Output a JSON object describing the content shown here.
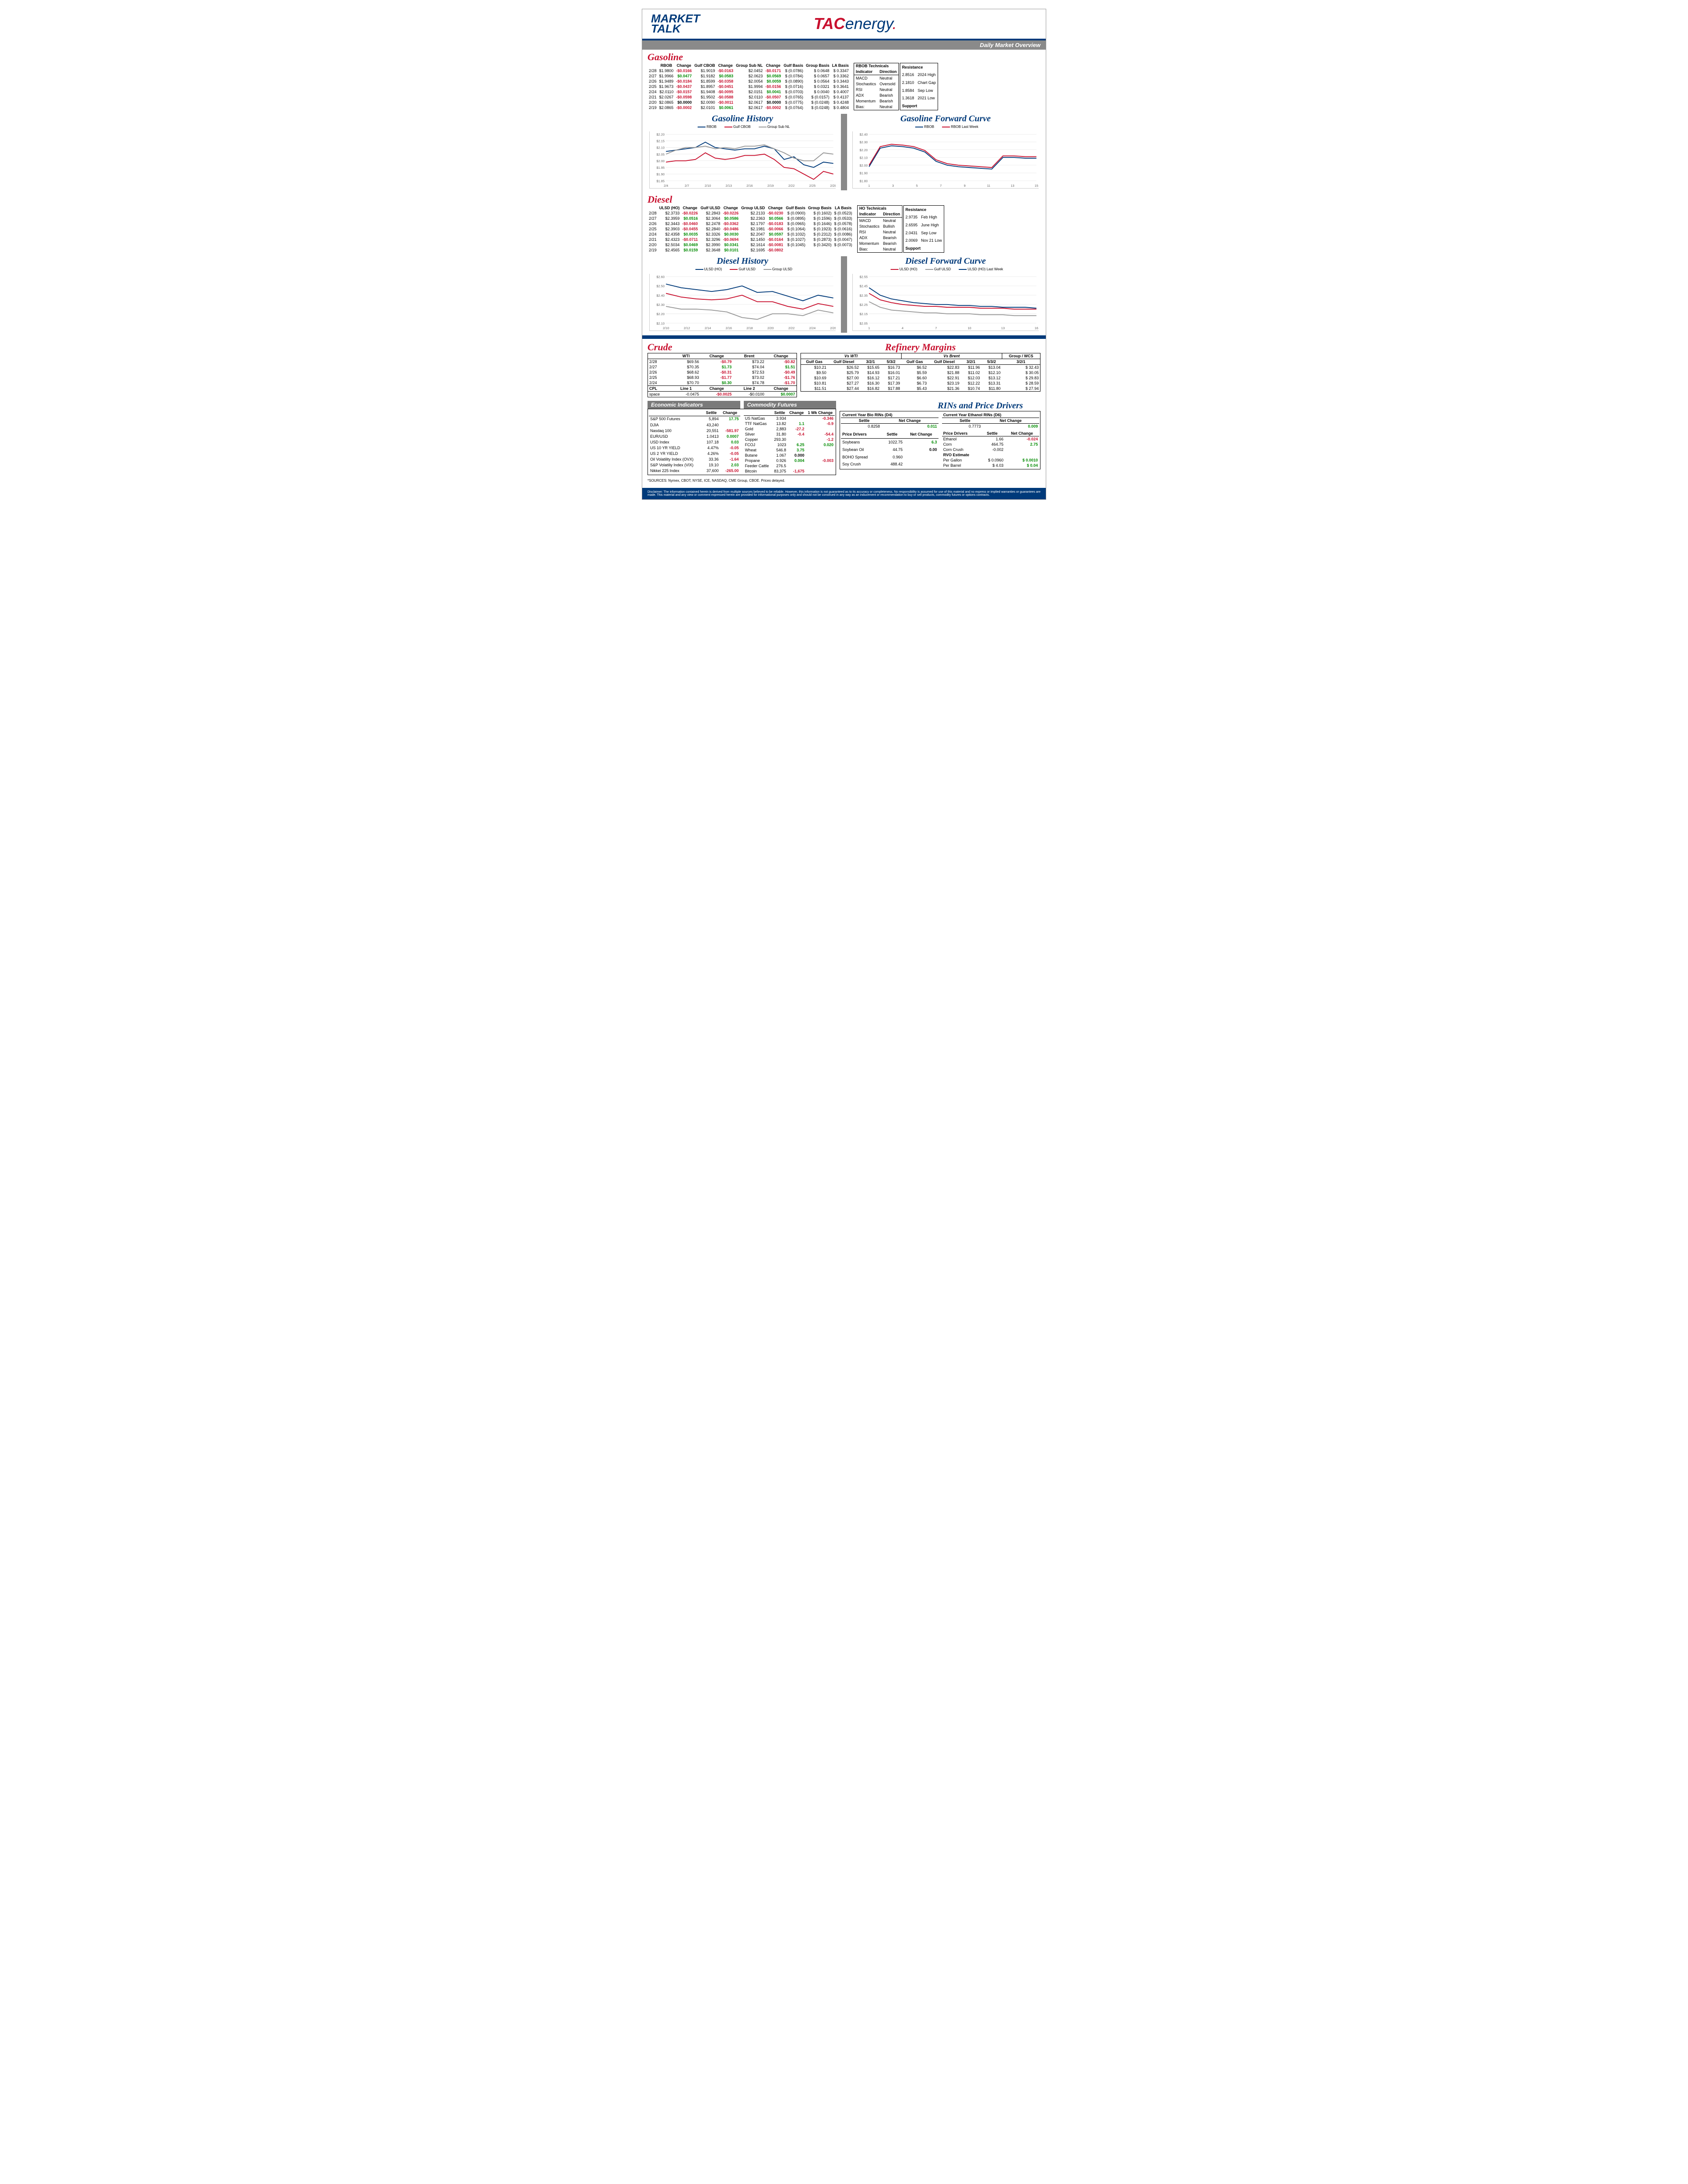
{
  "header": {
    "brand1_line1": "MARKET",
    "brand1_line2": "TALK",
    "brand2_red": "TAC",
    "brand2_blue": "energy",
    "daily_label": "Daily Market Overview"
  },
  "gasoline": {
    "title": "Gasoline",
    "cols": [
      "",
      "RBOB",
      "Change",
      "Gulf CBOB",
      "Change",
      "Group Sub NL",
      "Change",
      "Gulf Basis",
      "Group Basis",
      "LA Basis"
    ],
    "rows": [
      [
        "2/28",
        "$1.9800",
        "-$0.0166",
        "$1.9019",
        "-$0.0163",
        "$2.0452",
        "-$0.0171",
        "$ (0.0786)",
        "$    0.0648",
        "$  0.3347"
      ],
      [
        "2/27",
        "$1.9966",
        "$0.0477",
        "$1.9182",
        "$0.0583",
        "$2.0623",
        "$0.0569",
        "$ (0.0784)",
        "$    0.0657",
        "$  0.3362"
      ],
      [
        "2/26",
        "$1.9489",
        "-$0.0184",
        "$1.8599",
        "-$0.0358",
        "$2.0054",
        "$0.0059",
        "$ (0.0890)",
        "$    0.0564",
        "$  0.3443"
      ],
      [
        "2/25",
        "$1.9673",
        "-$0.0437",
        "$1.8957",
        "-$0.0451",
        "$1.9994",
        "-$0.0156",
        "$ (0.0716)",
        "$    0.0321",
        "$  0.3641"
      ],
      [
        "2/24",
        "$2.0110",
        "-$0.0157",
        "$1.9408",
        "-$0.0095",
        "$2.0151",
        "$0.0041",
        "$ (0.0703)",
        "$    0.0040",
        "$  0.4007"
      ],
      [
        "2/21",
        "$2.0267",
        "-$0.0598",
        "$1.9502",
        "-$0.0588",
        "$2.0110",
        "-$0.0507",
        "$ (0.0765)",
        "$ (0.0157)",
        "$  0.4137"
      ],
      [
        "2/20",
        "$2.0865",
        "$0.0000",
        "$2.0090",
        "-$0.0011",
        "$2.0617",
        "$0.0000",
        "$ (0.0775)",
        "$ (0.0248)",
        "$  0.4248"
      ],
      [
        "2/19",
        "$2.0865",
        "-$0.0002",
        "$2.0101",
        "$0.0061",
        "$2.0617",
        "-$0.0002",
        "$ (0.0764)",
        "$ (0.0248)",
        "$  0.4804"
      ]
    ],
    "tech_title": "RBOB Technicals",
    "tech": [
      [
        "Indicator",
        "Direction"
      ],
      [
        "MACD",
        "Neutral"
      ],
      [
        "Stochastics",
        "Oversold"
      ],
      [
        "RSI",
        "Neutral"
      ],
      [
        "ADX",
        "Bearish"
      ],
      [
        "Momentum",
        "Bearish"
      ],
      [
        "Bias:",
        "Neutral"
      ]
    ],
    "res_title": "Resistance",
    "res": [
      [
        "2.8516",
        "2024 High"
      ],
      [
        "2.1810",
        "Chart Gap"
      ],
      [
        "1.8584",
        "Sep Low"
      ],
      [
        "1.3618",
        "2021 Low"
      ]
    ],
    "sup_title": "Support"
  },
  "gas_history": {
    "title": "Gasoline History",
    "legend": [
      {
        "label": "RBOB",
        "color": "#003a7a"
      },
      {
        "label": "Gulf CBOB",
        "color": "#c8102e"
      },
      {
        "label": "Group Sub NL",
        "color": "#999"
      }
    ],
    "ylabels": [
      "$2.20",
      "$2.15",
      "$2.10",
      "$2.05",
      "$2.00",
      "$1.95",
      "$1.90",
      "$1.85"
    ],
    "xlabels": [
      "2/4",
      "2/7",
      "2/10",
      "2/13",
      "2/16",
      "2/19",
      "2/22",
      "2/25",
      "2/28"
    ],
    "series": {
      "rbob": [
        2.07,
        2.08,
        2.09,
        2.1,
        2.14,
        2.1,
        2.09,
        2.08,
        2.09,
        2.09,
        2.11,
        2.09,
        2.01,
        2.03,
        1.97,
        1.95,
        1.99,
        1.98
      ],
      "gulf": [
        1.99,
        2.0,
        2.0,
        2.01,
        2.06,
        2.02,
        2.01,
        2.02,
        2.04,
        2.04,
        2.05,
        2.01,
        1.95,
        1.94,
        1.9,
        1.86,
        1.92,
        1.9
      ],
      "group": [
        2.05,
        2.08,
        2.1,
        2.1,
        2.11,
        2.09,
        2.1,
        2.09,
        2.11,
        2.11,
        2.12,
        2.09,
        2.06,
        2.02,
        2.0,
        2.0,
        2.06,
        2.05
      ]
    },
    "ylim": [
      1.85,
      2.2
    ]
  },
  "gas_forward": {
    "title": "Gasoline Forward Curve",
    "legend": [
      {
        "label": "RBOB",
        "color": "#003a7a"
      },
      {
        "label": "RBOB Last Week",
        "color": "#c8102e"
      }
    ],
    "ylabels": [
      "$2.40",
      "$2.30",
      "$2.20",
      "$2.10",
      "$2.00",
      "$1.90",
      "$1.80"
    ],
    "xlabels": [
      "1",
      "3",
      "5",
      "7",
      "9",
      "11",
      "13",
      "15"
    ],
    "series": {
      "rbob": [
        1.98,
        2.22,
        2.25,
        2.24,
        2.22,
        2.17,
        2.05,
        2.0,
        1.98,
        1.97,
        1.96,
        1.95,
        2.1,
        2.1,
        2.09,
        2.09
      ],
      "last": [
        2.0,
        2.24,
        2.27,
        2.26,
        2.24,
        2.19,
        2.07,
        2.02,
        2.0,
        1.99,
        1.98,
        1.97,
        2.12,
        2.12,
        2.11,
        2.11
      ]
    },
    "ylim": [
      1.8,
      2.4
    ]
  },
  "diesel": {
    "title": "Diesel",
    "cols": [
      "",
      "ULSD (HO)",
      "Change",
      "Gulf ULSD",
      "Change",
      "Group ULSD",
      "Change",
      "Gulf Basis",
      "Group Basis",
      "LA Basis"
    ],
    "rows": [
      [
        "2/28",
        "$2.3733",
        "-$0.0226",
        "$2.2843",
        "-$0.0226",
        "$2.2133",
        "-$0.0230",
        "$ (0.0900)",
        "$ (0.1602)",
        "$ (0.0523)"
      ],
      [
        "2/27",
        "$2.3959",
        "$0.0516",
        "$2.3064",
        "$0.0586",
        "$2.2363",
        "$0.0566",
        "$ (0.0895)",
        "$ (0.1596)",
        "$ (0.0533)"
      ],
      [
        "2/26",
        "$2.3443",
        "-$0.0460",
        "$2.2478",
        "-$0.0362",
        "$2.1797",
        "-$0.0183",
        "$ (0.0965)",
        "$ (0.1646)",
        "$ (0.0578)"
      ],
      [
        "2/25",
        "$2.3903",
        "-$0.0455",
        "$2.2840",
        "-$0.0486",
        "$2.1981",
        "-$0.0066",
        "$ (0.1064)",
        "$ (0.1923)",
        "$ (0.0616)"
      ],
      [
        "2/24",
        "$2.4358",
        "$0.0035",
        "$2.3326",
        "$0.0030",
        "$2.2047",
        "$0.0597",
        "$ (0.1032)",
        "$ (0.2312)",
        "$ (0.0086)"
      ],
      [
        "2/21",
        "$2.4323",
        "-$0.0711",
        "$2.3296",
        "-$0.0694",
        "$2.1450",
        "-$0.0164",
        "$ (0.1027)",
        "$ (0.2873)",
        "$ (0.0047)"
      ],
      [
        "2/20",
        "$2.5034",
        "$0.0469",
        "$2.3990",
        "$0.0341",
        "$2.1614",
        "-$0.0081",
        "$ (0.1045)",
        "$ (0.3420)",
        "$ (0.0073)"
      ],
      [
        "2/19",
        "$2.4565",
        "$0.0159",
        "$2.3648",
        "$0.0101",
        "$2.1695",
        "-$0.0802",
        "",
        "",
        ""
      ]
    ],
    "tech_title": "HO Technicals",
    "tech": [
      [
        "Indicator",
        "Direction"
      ],
      [
        "MACD",
        "Neutral"
      ],
      [
        "Stochastics",
        "Bullish"
      ],
      [
        "RSI",
        "Neutral"
      ],
      [
        "ADX",
        "Bearish"
      ],
      [
        "Momentum",
        "Bearish"
      ],
      [
        "Bias:",
        "Neutral"
      ]
    ],
    "res_title": "Resistance",
    "res": [
      [
        "2.9735",
        "Feb High"
      ],
      [
        "2.6595",
        "June High"
      ],
      [
        "2.0431",
        "Sep Low"
      ],
      [
        "2.0069",
        "Nov 21 Low"
      ]
    ],
    "sup_title": "Support"
  },
  "diesel_history": {
    "title": "Diesel History",
    "legend": [
      {
        "label": "ULSD (HO)",
        "color": "#003a7a"
      },
      {
        "label": "Gulf ULSD",
        "color": "#c8102e"
      },
      {
        "label": "Group ULSD",
        "color": "#999"
      }
    ],
    "ylabels": [
      "$2.60",
      "$2.50",
      "$2.40",
      "$2.30",
      "$2.20",
      "$2.10"
    ],
    "xlabels": [
      "2/10",
      "2/12",
      "2/14",
      "2/16",
      "2/18",
      "2/20",
      "2/22",
      "2/24",
      "2/26"
    ],
    "series": {
      "ulsd": [
        2.52,
        2.48,
        2.46,
        2.44,
        2.46,
        2.5,
        2.43,
        2.44,
        2.39,
        2.34,
        2.4,
        2.37
      ],
      "gulf": [
        2.42,
        2.38,
        2.36,
        2.35,
        2.36,
        2.4,
        2.33,
        2.33,
        2.28,
        2.25,
        2.31,
        2.28
      ],
      "group": [
        2.28,
        2.25,
        2.25,
        2.24,
        2.22,
        2.16,
        2.14,
        2.2,
        2.2,
        2.18,
        2.24,
        2.21
      ]
    },
    "ylim": [
      2.1,
      2.6
    ]
  },
  "diesel_forward": {
    "title": "Diesel Forward Curve",
    "legend": [
      {
        "label": "ULSD (HO)",
        "color": "#c8102e"
      },
      {
        "label": "Gulf ULSD",
        "color": "#999"
      },
      {
        "label": "ULSD (HO) Last Week",
        "color": "#003a7a"
      }
    ],
    "ylabels": [
      "$2.55",
      "$2.45",
      "$2.35",
      "$2.25",
      "$2.15",
      "$2.05"
    ],
    "xlabels": [
      "1",
      "4",
      "7",
      "10",
      "13",
      "16"
    ],
    "series": {
      "ulsd": [
        2.37,
        2.3,
        2.27,
        2.25,
        2.24,
        2.23,
        2.23,
        2.22,
        2.22,
        2.22,
        2.21,
        2.21,
        2.21,
        2.2,
        2.2,
        2.2
      ],
      "gulf": [
        2.28,
        2.22,
        2.19,
        2.18,
        2.17,
        2.16,
        2.16,
        2.15,
        2.15,
        2.15,
        2.14,
        2.14,
        2.14,
        2.13,
        2.13,
        2.13
      ],
      "last": [
        2.43,
        2.35,
        2.31,
        2.29,
        2.27,
        2.26,
        2.25,
        2.25,
        2.24,
        2.24,
        2.23,
        2.23,
        2.22,
        2.22,
        2.22,
        2.21
      ]
    },
    "ylim": [
      2.05,
      2.55
    ]
  },
  "crude": {
    "title": "Crude",
    "cols": [
      "",
      "WTI",
      "Change",
      "Brent",
      "Change"
    ],
    "rows": [
      [
        "2/28",
        "$69.56",
        "-$0.79",
        "$73.22",
        "-$0.82"
      ],
      [
        "2/27",
        "$70.35",
        "$1.73",
        "$74.04",
        "$1.51"
      ],
      [
        "2/26",
        "$68.62",
        "-$0.31",
        "$72.53",
        "-$0.49"
      ],
      [
        "2/25",
        "$68.93",
        "-$1.77",
        "$73.02",
        "-$1.76"
      ],
      [
        "2/24",
        "$70.70",
        "$0.30",
        "$74.78",
        "-$1.70"
      ]
    ],
    "cpl": [
      "CPL",
      "Line 1",
      "Change",
      "Line 2",
      "Change"
    ],
    "cpl_row": [
      "space",
      "-0.0475",
      "-$0.0025",
      "-$0.0100",
      "$0.0007"
    ]
  },
  "refinery": {
    "title": "Refinery Margins",
    "wti_head": "Vs WTI",
    "brent_head": "Vs Brent",
    "group_head": "Group / WCS",
    "cols": [
      "Gulf Gas",
      "Gulf Diesel",
      "3/2/1",
      "5/3/2",
      "Gulf Gas",
      "Gulf Diesel",
      "3/2/1",
      "5/3/2",
      "3/2/1"
    ],
    "rows": [
      [
        "$10.21",
        "$26.52",
        "$15.65",
        "$16.73",
        "$6.52",
        "$22.83",
        "$11.96",
        "$13.04",
        "$    32.43"
      ],
      [
        "$9.50",
        "$25.79",
        "$14.93",
        "$16.01",
        "$5.59",
        "$21.88",
        "$11.02",
        "$12.10",
        "$    30.05"
      ],
      [
        "$10.69",
        "$27.00",
        "$16.12",
        "$17.21",
        "$6.60",
        "$22.91",
        "$12.03",
        "$13.12",
        "$    29.83"
      ],
      [
        "$10.81",
        "$27.27",
        "$16.30",
        "$17.39",
        "$6.73",
        "$23.19",
        "$12.22",
        "$13.31",
        "$    28.59"
      ],
      [
        "$11.51",
        "$27.44",
        "$16.82",
        "$17.88",
        "$5.43",
        "$21.36",
        "$10.74",
        "$11.80",
        "$    27.94"
      ]
    ]
  },
  "econ": {
    "title": "Economic Indicators",
    "cols": [
      "",
      "Settle",
      "Change"
    ],
    "rows": [
      [
        "S&P 500 Futures",
        "5,894",
        "17.75",
        "pos"
      ],
      [
        "DJIA",
        "43,240",
        "",
        ""
      ],
      [
        "Nasdaq 100",
        "20,551",
        "-581.97",
        "neg"
      ],
      [
        "EUR/USD",
        "1.0413",
        "0.0007",
        "pos"
      ],
      [
        "USD Index",
        "107.18",
        "0.03",
        "pos"
      ],
      [
        "US 10 YR YIELD",
        "4.47%",
        "-0.05",
        "neg"
      ],
      [
        "US 2 YR YIELD",
        "4.26%",
        "-0.05",
        "neg"
      ],
      [
        "Oil Volatility Index (OVX)",
        "33.36",
        "-1.64",
        "neg"
      ],
      [
        "S&P Volatiliy Index (VIX)",
        "19.10",
        "2.03",
        "pos"
      ],
      [
        "Nikkei 225 Index",
        "37,600",
        "-265.00",
        "neg"
      ]
    ]
  },
  "commod": {
    "title": "Commodity Futures",
    "cols": [
      "",
      "Settle",
      "Change",
      "1 Wk Change"
    ],
    "rows": [
      [
        "US NatGas",
        "3.934",
        "",
        "-0.346",
        "neg"
      ],
      [
        "TTF NatGas",
        "13.82",
        "1.1",
        "-0.9",
        "posneg"
      ],
      [
        "Gold",
        "2,883",
        "-27.2",
        "",
        "neg"
      ],
      [
        "Silver",
        "31.80",
        "-0.4",
        "-54.4",
        "negneg"
      ],
      [
        "Copper",
        "293.30",
        "",
        "-1.2",
        "neg"
      ],
      [
        "FCOJ",
        "1023",
        "6.25",
        "0.020",
        "pospos"
      ],
      [
        "Wheat",
        "546.8",
        "3.75",
        "",
        "pos"
      ],
      [
        "Butane",
        "1.067",
        "0.000",
        "",
        "pos"
      ],
      [
        "Propane",
        "0.926",
        "0.004",
        "-0.003",
        "posneg"
      ],
      [
        "Feeder Cattle",
        "276.5",
        "",
        "",
        ""
      ],
      [
        "Bitcoin",
        "83,375",
        "-1,675",
        "",
        "neg"
      ]
    ]
  },
  "rins": {
    "title": "RINs and Price Drivers",
    "d4_title": "Current Year Bio RINs (D4)",
    "d6_title": "Current Year Ethanol RINs (D6)",
    "d4": {
      "settle": "0.8258",
      "chg": "0.011"
    },
    "d6": {
      "settle": "0.7773",
      "chg": "0.009"
    },
    "pd_title": "Price Drivers",
    "pd_cols": [
      "",
      "Settle",
      "Net Change"
    ],
    "pd_left": [
      [
        "Soybeans",
        "1022.75",
        "6.3",
        "pos"
      ],
      [
        "Soybean Oil",
        "44.75",
        "0.00",
        "bold"
      ],
      [
        "BOHO Spread",
        "0.960",
        "",
        ""
      ],
      [
        "Soy Crush",
        "488.42",
        "",
        ""
      ]
    ],
    "pd_right": [
      [
        "Ethanol",
        "1.66",
        "-0.024",
        "neg"
      ],
      [
        "Corn",
        "464.75",
        "2.75",
        "pos"
      ],
      [
        "Corn Crush",
        "-0.002",
        "",
        ""
      ]
    ],
    "rvo_title": "RVO Estimate",
    "rvo": [
      [
        "Per Gallon",
        "$   0.0960",
        "$     0.0010"
      ],
      [
        "Per Barrel",
        "$      4.03",
        "$        0.04"
      ]
    ]
  },
  "sources": "*SOURCES: Nymex, CBOT, NYSE, ICE, NASDAQ, CME Group, CBOE.   Prices delayed.",
  "disclaimer": "Disclaimer: The information contained herein is derived from multiple sources believed to be reliable. However, this information is not guaranteed as to its accuracy or completeness. No responsibility is assumed for use of this material and no express or implied warranties or guarantees are made. This material and any view or comment expressed herein are provided for informational purposes only and should not be construed in any way as an inducement or recommendation to buy or sell products, commodity futures or options contracts."
}
